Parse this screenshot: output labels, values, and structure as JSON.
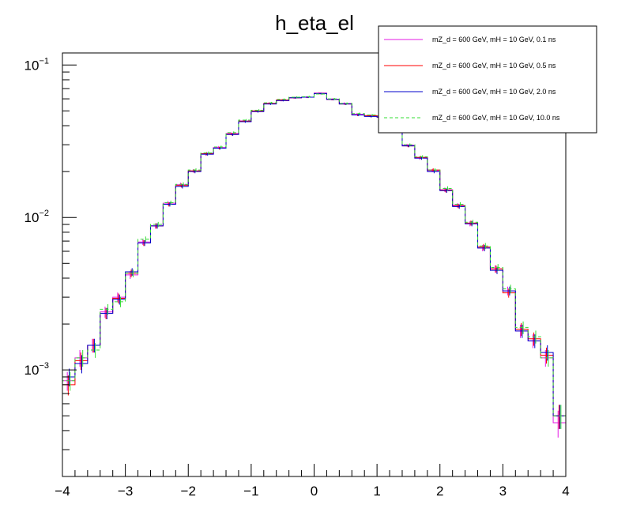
{
  "chart_data": {
    "type": "line",
    "title": "h_eta_el",
    "xlabel": "",
    "ylabel": "",
    "xlim": [
      -4,
      4
    ],
    "ylim": [
      0.0002,
      0.12
    ],
    "yscale": "log",
    "grid": false,
    "legend_position": "top-right",
    "x_ticks": [
      -4,
      -3,
      -2,
      -1,
      0,
      1,
      2,
      3,
      4
    ],
    "x_tick_labels": [
      "−4",
      "−3",
      "−2",
      "−1",
      "0",
      "1",
      "2",
      "3",
      "4"
    ],
    "y_tick_labels": [
      {
        "value": 0.1,
        "base": "10",
        "exp": "−1"
      },
      {
        "value": 0.01,
        "base": "10",
        "exp": "−2"
      },
      {
        "value": 0.001,
        "base": "10",
        "exp": "−3"
      }
    ],
    "bin_edges": [
      -4.0,
      -3.8,
      -3.6,
      -3.4,
      -3.2,
      -3.0,
      -2.8,
      -2.6,
      -2.4,
      -2.2,
      -2.0,
      -1.8,
      -1.6,
      -1.4,
      -1.2,
      -1.0,
      -0.8,
      -0.6,
      -0.4,
      -0.2,
      0.0,
      0.2,
      0.4,
      0.6,
      0.8,
      1.0,
      1.2,
      1.4,
      1.6,
      1.8,
      2.0,
      2.2,
      2.4,
      2.6,
      2.8,
      3.0,
      3.2,
      3.4,
      3.6,
      3.8,
      4.0
    ],
    "series": [
      {
        "name": "mZ_d = 600 GeV, mH = 10 GeV, 0.1 ns",
        "color": "#e619e6",
        "style": "solid",
        "values": [
          0.00085,
          0.0012,
          0.00145,
          0.0024,
          0.003,
          0.0042,
          0.0069,
          0.0088,
          0.0124,
          0.0164,
          0.0202,
          0.026,
          0.0288,
          0.0355,
          0.043,
          0.05,
          0.056,
          0.0585,
          0.061,
          0.0615,
          0.0655,
          0.0595,
          0.056,
          0.0475,
          0.0465,
          0.046,
          0.037,
          0.0298,
          0.0245,
          0.0203,
          0.0152,
          0.012,
          0.0091,
          0.0063,
          0.0046,
          0.0033,
          0.0018,
          0.00155,
          0.0012,
          0.00045
        ],
        "errors": [
          0.00012,
          0.00015,
          0.00015,
          0.0002,
          0.00022,
          0.00025,
          0.0003,
          0.00035,
          0.0004,
          0.0005,
          0.0005,
          0.0006,
          0.0006,
          0.0007,
          0.0007,
          0.0008,
          0.0008,
          0.0008,
          0.0008,
          0.0008,
          0.0008,
          0.0008,
          0.0008,
          0.0008,
          0.0008,
          0.0007,
          0.0007,
          0.0006,
          0.0006,
          0.0005,
          0.0005,
          0.0004,
          0.00035,
          0.0003,
          0.00025,
          0.00022,
          0.00018,
          0.00016,
          0.00015,
          9e-05
        ]
      },
      {
        "name": "mZ_d = 600 GeV, mH = 10 GeV, 0.5 ns",
        "color": "#ff0000",
        "style": "solid",
        "values": [
          0.0008,
          0.00115,
          0.00145,
          0.00235,
          0.00295,
          0.0043,
          0.0068,
          0.0088,
          0.0122,
          0.0162,
          0.0202,
          0.0262,
          0.0285,
          0.0352,
          0.0428,
          0.05,
          0.056,
          0.059,
          0.061,
          0.0615,
          0.065,
          0.0595,
          0.0555,
          0.047,
          0.0465,
          0.0455,
          0.037,
          0.0295,
          0.0248,
          0.0205,
          0.0151,
          0.0119,
          0.0092,
          0.0064,
          0.0046,
          0.0032,
          0.00185,
          0.0016,
          0.00125,
          0.0005
        ],
        "errors": [
          0.00012,
          0.00015,
          0.00015,
          0.0002,
          0.00022,
          0.00025,
          0.0003,
          0.00035,
          0.0004,
          0.0005,
          0.0005,
          0.0006,
          0.0006,
          0.0007,
          0.0007,
          0.0008,
          0.0008,
          0.0008,
          0.0008,
          0.0008,
          0.0008,
          0.0008,
          0.0008,
          0.0008,
          0.0008,
          0.0007,
          0.0007,
          0.0006,
          0.0006,
          0.0005,
          0.0005,
          0.0004,
          0.00035,
          0.0003,
          0.00025,
          0.00022,
          0.00018,
          0.00016,
          0.00015,
          9e-05
        ]
      },
      {
        "name": "mZ_d = 600 GeV, mH = 10 GeV, 2.0 ns",
        "color": "#0000cc",
        "style": "solid",
        "values": [
          0.0009,
          0.0011,
          0.00145,
          0.00235,
          0.0029,
          0.0044,
          0.0068,
          0.0088,
          0.0122,
          0.016,
          0.02,
          0.026,
          0.0285,
          0.035,
          0.0425,
          0.0495,
          0.0555,
          0.0585,
          0.061,
          0.0615,
          0.065,
          0.0595,
          0.0555,
          0.047,
          0.046,
          0.0455,
          0.0365,
          0.0295,
          0.0245,
          0.02,
          0.015,
          0.0118,
          0.0091,
          0.0063,
          0.0045,
          0.0033,
          0.0018,
          0.00155,
          0.0013,
          0.0005
        ],
        "errors": [
          0.00012,
          0.00015,
          0.00015,
          0.0002,
          0.00022,
          0.00025,
          0.0003,
          0.00035,
          0.0004,
          0.0005,
          0.0005,
          0.0006,
          0.0006,
          0.0007,
          0.0007,
          0.0008,
          0.0008,
          0.0008,
          0.0008,
          0.0008,
          0.0008,
          0.0008,
          0.0008,
          0.0008,
          0.0008,
          0.0007,
          0.0007,
          0.0006,
          0.0006,
          0.0005,
          0.0005,
          0.0004,
          0.00035,
          0.0003,
          0.00025,
          0.00022,
          0.00018,
          0.00016,
          0.00015,
          9e-05
        ]
      },
      {
        "name": "mZ_d = 600 GeV, mH = 10 GeV, 10.0 ns",
        "color": "#33dd33",
        "style": "dashed",
        "values": [
          0.00085,
          0.0012,
          0.00135,
          0.0025,
          0.0028,
          0.0043,
          0.0072,
          0.009,
          0.0125,
          0.0165,
          0.0205,
          0.0265,
          0.029,
          0.036,
          0.0435,
          0.0505,
          0.0565,
          0.0595,
          0.0615,
          0.062,
          0.0645,
          0.06,
          0.056,
          0.048,
          0.047,
          0.0465,
          0.0375,
          0.03,
          0.025,
          0.0205,
          0.0155,
          0.0122,
          0.0093,
          0.0065,
          0.0047,
          0.0034,
          0.0019,
          0.00165,
          0.0012,
          0.0005
        ],
        "errors": [
          0.00012,
          0.00015,
          0.00015,
          0.0002,
          0.00022,
          0.00025,
          0.0003,
          0.00035,
          0.0004,
          0.0005,
          0.0005,
          0.0006,
          0.0006,
          0.0007,
          0.0007,
          0.0008,
          0.0008,
          0.0008,
          0.0008,
          0.0008,
          0.0008,
          0.0008,
          0.0008,
          0.0008,
          0.0008,
          0.0007,
          0.0007,
          0.0006,
          0.0006,
          0.0005,
          0.0005,
          0.0004,
          0.00035,
          0.0003,
          0.00025,
          0.00022,
          0.00018,
          0.00016,
          0.00015,
          9e-05
        ]
      }
    ]
  }
}
